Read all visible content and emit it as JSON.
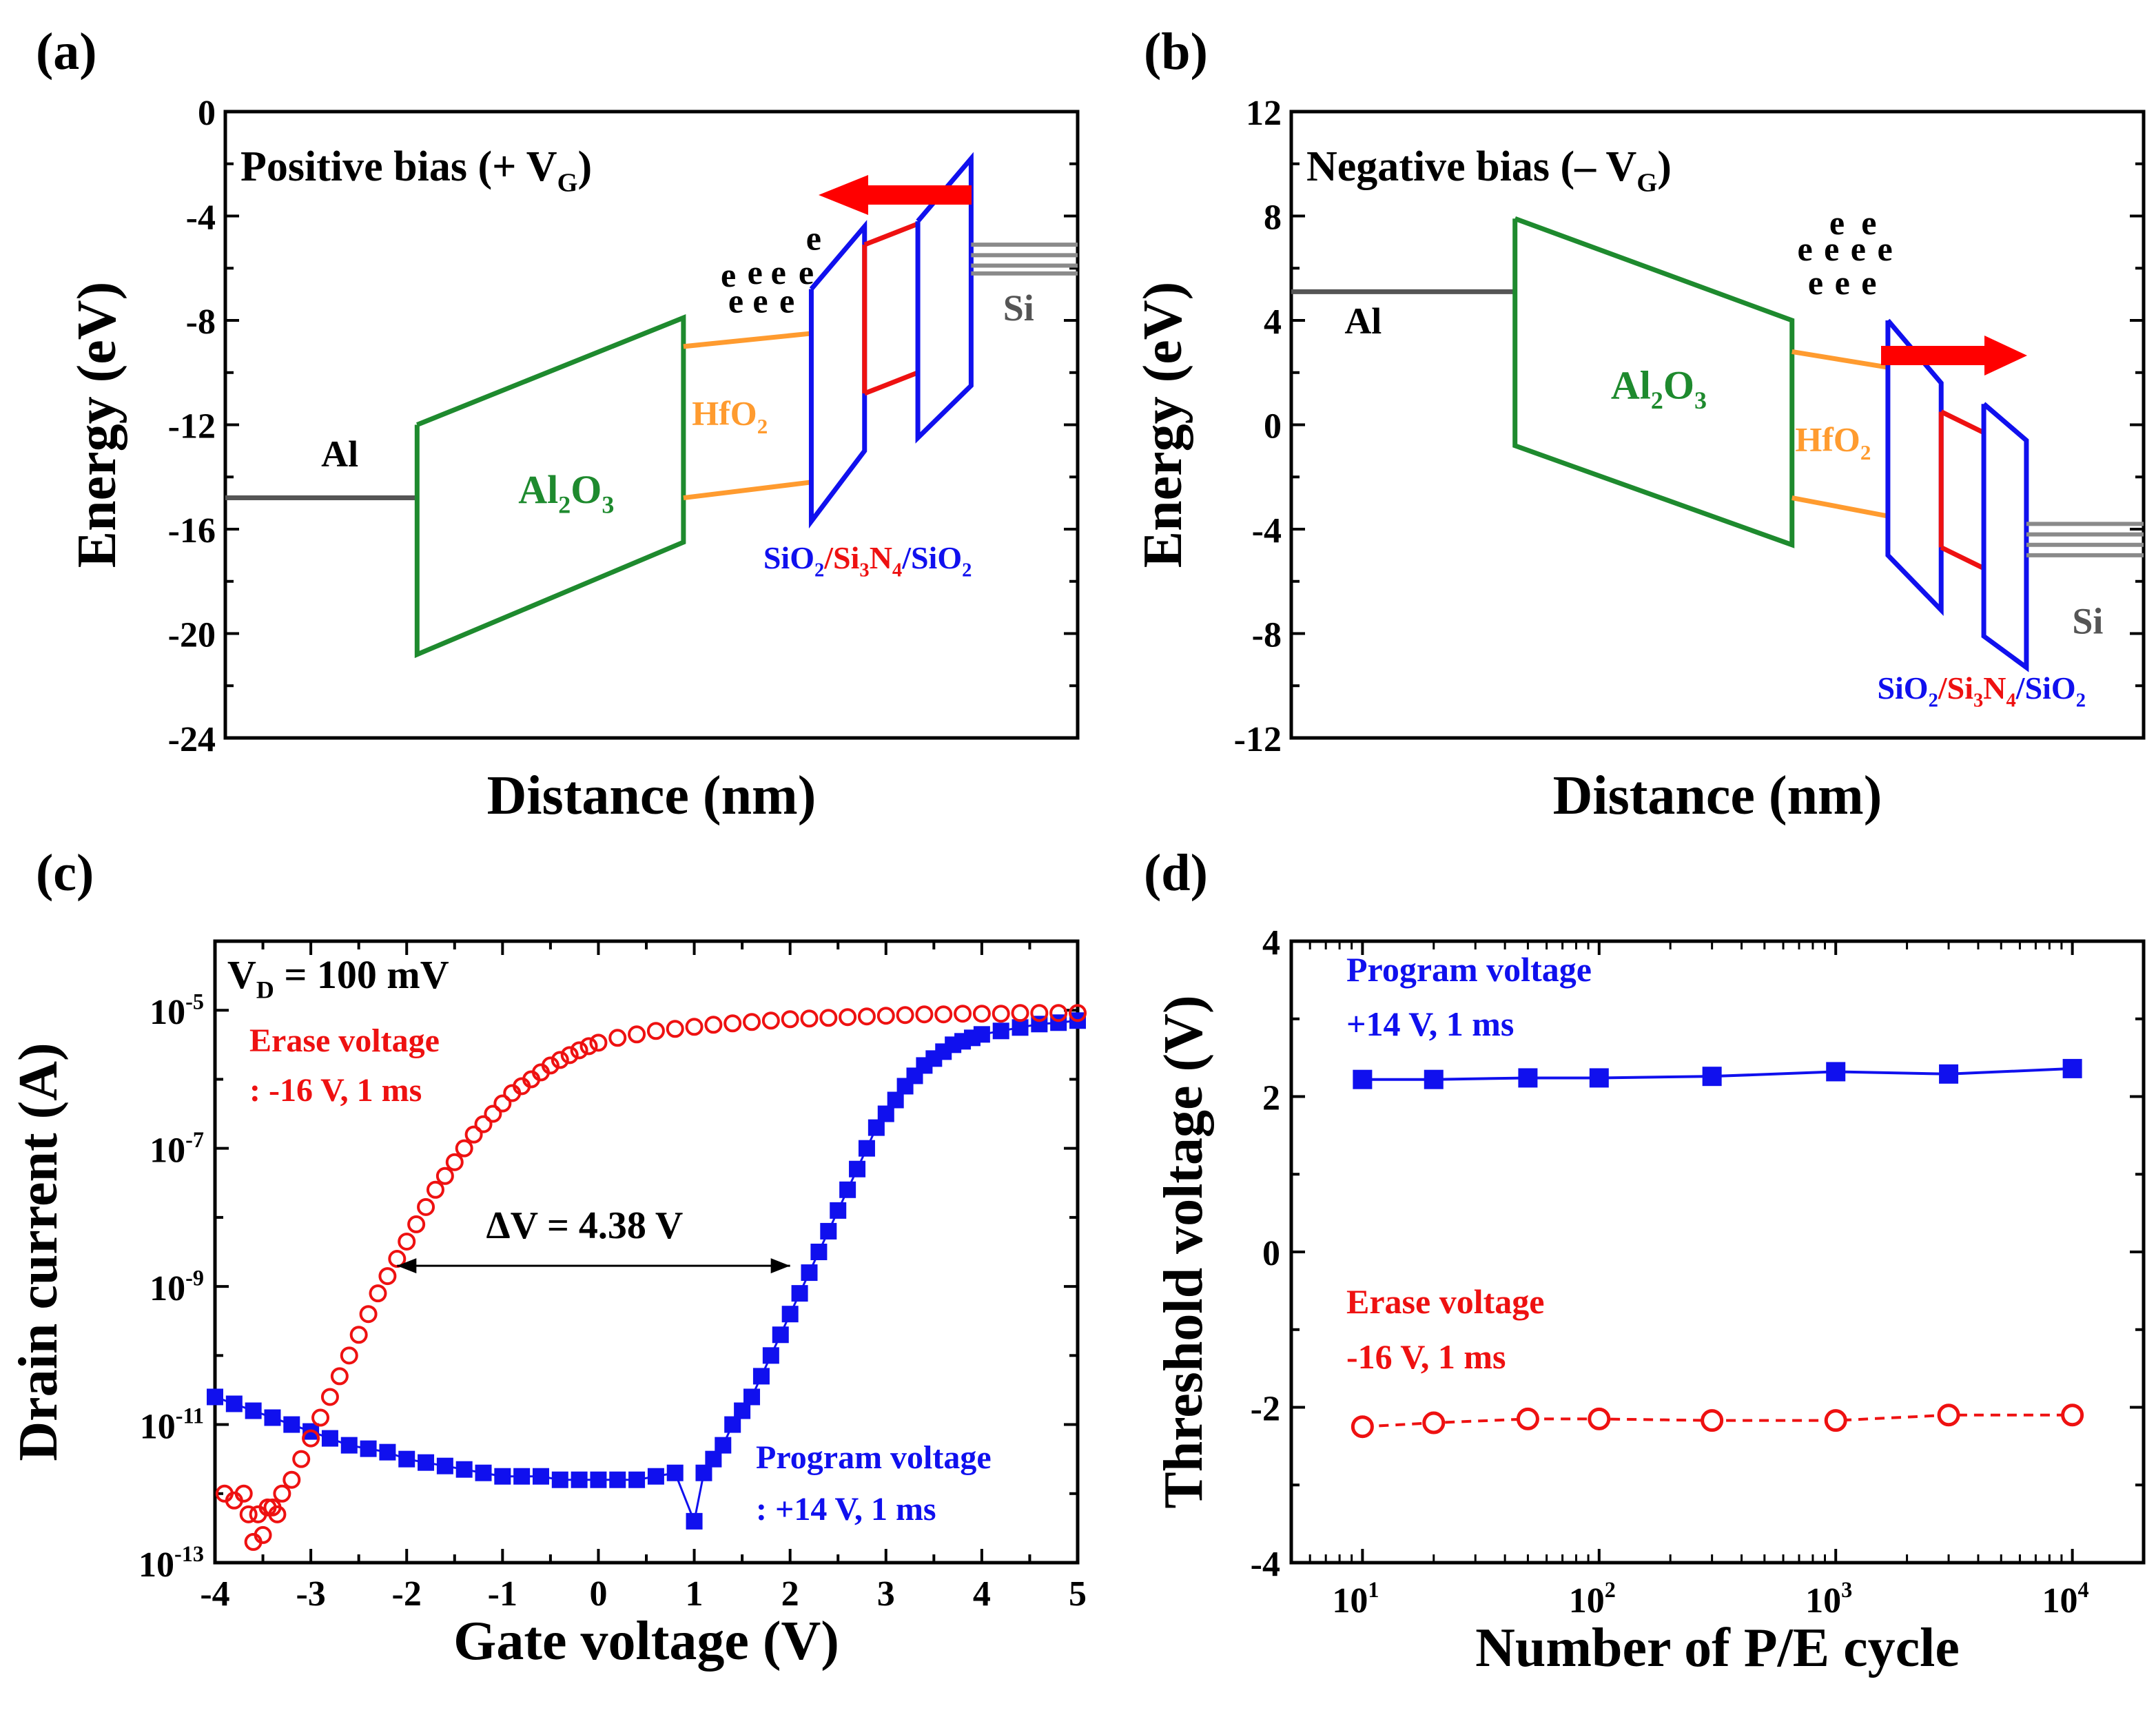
{
  "colors": {
    "al": "#555555",
    "al2o3": "#1e8a2e",
    "hfo2": "#ff9b2f",
    "sio2": "#1010ee",
    "si3n4": "#ee1111",
    "si": "#8a8a8a",
    "arrow": "#ff0000",
    "program": "#1010ee",
    "erase": "#ee1111"
  },
  "panels": [
    {
      "letter": "(a)",
      "title_main": "Positive bias (+ V",
      "title_sub": "G",
      "title_end": ")",
      "xlabel": "Distance (nm)",
      "ylabel": "Energy (eV)",
      "ticks": [
        "0",
        "-4",
        "-8",
        "-12",
        "-16",
        "-20",
        "-24"
      ],
      "ylim": [
        -24,
        0
      ]
    },
    {
      "letter": "(b)",
      "title_main": "Negative bias (– V",
      "title_sub": "G",
      "title_end": ")",
      "xlabel": "Distance (nm)",
      "ylabel": "Energy (eV)",
      "ticks": [
        "12",
        "8",
        "4",
        "0",
        "-4",
        "-8",
        "-12"
      ],
      "ylim": [
        -12,
        12
      ]
    },
    {
      "letter": "(c)",
      "xlabel": "Gate voltage (V)",
      "ylabel": "Drain current (A)",
      "vd_main": "V",
      "vd_sub": "D",
      "vd_end": " = 100 mV",
      "delta": "ΔV = 4.38 V",
      "erase_l1": "Erase voltage",
      "erase_l2": ": -16 V, 1 ms",
      "program_l1": "Program voltage",
      "program_l2": ": +14 V, 1 ms",
      "xticks": [
        "-4",
        "-3",
        "-2",
        "-1",
        "0",
        "1",
        "2",
        "3",
        "4",
        "5"
      ],
      "yticks": [
        "10",
        "10",
        "10",
        "10",
        "10"
      ],
      "yexp": [
        "-5",
        "-7",
        "-9",
        "-11",
        "-13"
      ]
    },
    {
      "letter": "(d)",
      "xlabel": "Number of P/E cycle",
      "ylabel": "Threshold voltage (V)",
      "program_l1": "Program voltage",
      "program_l2": "+14 V, 1 ms",
      "erase_l1": "Erase voltage",
      "erase_l2": "-16 V, 1 ms",
      "yticks": [
        "4",
        "2",
        "0",
        "-2",
        "-4"
      ],
      "xtick_base": [
        "10",
        "10",
        "10",
        "10"
      ],
      "xtick_exp": [
        "1",
        "2",
        "3",
        "4"
      ]
    }
  ],
  "band_labels": {
    "al": "Al",
    "al2o3_a": "Al",
    "al2o3_b": "2",
    "al2o3_c": "O",
    "al2o3_d": "3",
    "hfo2_a": "HfO",
    "hfo2_b": "2",
    "si": "Si",
    "e": "e",
    "stack_1": "SiO",
    "stack_2": "2",
    "stack_3": "/",
    "stack_4": "Si",
    "stack_5": "3",
    "stack_6": "N",
    "stack_7": "4",
    "stack_8": "/",
    "stack_9": "SiO",
    "stack_10": "2"
  },
  "chart_data": [
    {
      "type": "line",
      "panel": "a",
      "ylim": [
        -24,
        0
      ],
      "segments": {
        "al_level": [
          [
            0,
            -14.8
          ],
          [
            1.8,
            -14.8
          ]
        ],
        "al2o3": {
          "x": [
            1.8,
            4.3
          ],
          "top": [
            -12.0,
            -7.9
          ],
          "bottom": [
            -20.8,
            -16.5
          ]
        },
        "hfo2": {
          "x": [
            4.3,
            5.5
          ],
          "top": [
            -9.0,
            -8.5
          ],
          "bottom": [
            -14.8,
            -14.2
          ]
        },
        "sio2_1": {
          "x": [
            5.5,
            6.0
          ],
          "top": [
            -6.8,
            -4.4
          ],
          "bottom": [
            -15.7,
            -13.0
          ]
        },
        "si3n4": {
          "x": [
            6.0,
            6.5
          ],
          "top": [
            -5.1,
            -4.3
          ],
          "bottom": [
            -10.8,
            -10.0
          ]
        },
        "sio2_2": {
          "x": [
            6.5,
            7.0
          ],
          "top": [
            -4.2,
            -1.8
          ],
          "bottom": [
            -12.5,
            -10.5
          ]
        },
        "si_levels": [
          -5.1,
          -5.5,
          -5.9,
          -6.2
        ]
      }
    },
    {
      "type": "line",
      "panel": "b",
      "ylim": [
        -12,
        12
      ],
      "segments": {
        "al_level": [
          [
            0,
            5.1
          ],
          [
            2.1,
            5.1
          ]
        ],
        "al2o3": {
          "x": [
            2.1,
            4.7
          ],
          "top": [
            7.9,
            4.0
          ],
          "bottom": [
            -0.8,
            -4.6
          ]
        },
        "hfo2": {
          "x": [
            4.7,
            5.6
          ],
          "top": [
            2.8,
            2.2
          ],
          "bottom": [
            -2.8,
            -3.5
          ]
        },
        "sio2_1": {
          "x": [
            5.6,
            6.1
          ],
          "top": [
            4.0,
            1.6
          ],
          "bottom": [
            -5.0,
            -7.1
          ]
        },
        "si3n4": {
          "x": [
            6.1,
            6.5
          ],
          "top": [
            0.5,
            -0.3
          ],
          "bottom": [
            -4.7,
            -5.5
          ]
        },
        "sio2_2": {
          "x": [
            6.5,
            6.9
          ],
          "top": [
            0.8,
            -0.6
          ],
          "bottom": [
            -8.1,
            -9.3
          ]
        },
        "si_levels": [
          -3.8,
          -4.2,
          -4.6,
          -5.0
        ]
      }
    },
    {
      "type": "scatter",
      "panel": "c",
      "xlim": [
        -4,
        5
      ],
      "ylim_log10": [
        -13,
        -4
      ],
      "series": [
        {
          "name": "Erase voltage",
          "marker": "open-circle",
          "x": [
            -3.9,
            -3.8,
            -3.7,
            -3.65,
            -3.6,
            -3.55,
            -3.5,
            -3.45,
            -3.4,
            -3.35,
            -3.3,
            -3.2,
            -3.1,
            -3.0,
            -2.9,
            -2.8,
            -2.7,
            -2.6,
            -2.5,
            -2.4,
            -2.3,
            -2.2,
            -2.1,
            -2.0,
            -1.9,
            -1.8,
            -1.7,
            -1.6,
            -1.5,
            -1.4,
            -1.3,
            -1.2,
            -1.1,
            -1.0,
            -0.9,
            -0.8,
            -0.7,
            -0.6,
            -0.5,
            -0.4,
            -0.3,
            -0.2,
            -0.1,
            0.0,
            0.2,
            0.4,
            0.6,
            0.8,
            1.0,
            1.2,
            1.4,
            1.6,
            1.8,
            2.0,
            2.2,
            2.4,
            2.6,
            2.8,
            3.0,
            3.2,
            3.4,
            3.6,
            3.8,
            4.0,
            4.2,
            4.4,
            4.6,
            4.8,
            5.0
          ],
          "log10_y": [
            -12.0,
            -12.1,
            -12.0,
            -12.3,
            -12.7,
            -12.3,
            -12.6,
            -12.2,
            -12.2,
            -12.3,
            -12.0,
            -11.8,
            -11.5,
            -11.2,
            -10.9,
            -10.6,
            -10.3,
            -10.0,
            -9.7,
            -9.4,
            -9.1,
            -8.85,
            -8.6,
            -8.35,
            -8.1,
            -7.85,
            -7.6,
            -7.4,
            -7.2,
            -7.0,
            -6.8,
            -6.65,
            -6.5,
            -6.35,
            -6.2,
            -6.1,
            -6.0,
            -5.9,
            -5.8,
            -5.72,
            -5.65,
            -5.58,
            -5.52,
            -5.47,
            -5.4,
            -5.35,
            -5.3,
            -5.27,
            -5.24,
            -5.21,
            -5.19,
            -5.17,
            -5.15,
            -5.13,
            -5.12,
            -5.11,
            -5.1,
            -5.09,
            -5.08,
            -5.07,
            -5.06,
            -5.06,
            -5.05,
            -5.05,
            -5.05,
            -5.04,
            -5.04,
            -5.04,
            -5.04
          ]
        },
        {
          "name": "Program voltage",
          "marker": "filled-square",
          "x": [
            -4.0,
            -3.8,
            -3.6,
            -3.4,
            -3.2,
            -3.0,
            -2.8,
            -2.6,
            -2.4,
            -2.2,
            -2.0,
            -1.8,
            -1.6,
            -1.4,
            -1.2,
            -1.0,
            -0.8,
            -0.6,
            -0.4,
            -0.2,
            0.0,
            0.2,
            0.4,
            0.6,
            0.8,
            1.0,
            1.1,
            1.2,
            1.3,
            1.4,
            1.5,
            1.6,
            1.7,
            1.8,
            1.9,
            2.0,
            2.1,
            2.2,
            2.3,
            2.4,
            2.5,
            2.6,
            2.7,
            2.8,
            2.9,
            3.0,
            3.1,
            3.2,
            3.3,
            3.4,
            3.5,
            3.6,
            3.7,
            3.8,
            3.9,
            4.0,
            4.2,
            4.4,
            4.6,
            4.8,
            5.0
          ],
          "log10_y": [
            -10.6,
            -10.7,
            -10.8,
            -10.9,
            -11.0,
            -11.1,
            -11.2,
            -11.3,
            -11.35,
            -11.4,
            -11.5,
            -11.55,
            -11.6,
            -11.65,
            -11.7,
            -11.75,
            -11.75,
            -11.75,
            -11.8,
            -11.8,
            -11.8,
            -11.8,
            -11.8,
            -11.75,
            -11.7,
            -12.4,
            -11.7,
            -11.5,
            -11.3,
            -11.0,
            -10.8,
            -10.6,
            -10.3,
            -10.0,
            -9.7,
            -9.4,
            -9.1,
            -8.8,
            -8.5,
            -8.2,
            -7.9,
            -7.6,
            -7.3,
            -7.0,
            -6.7,
            -6.5,
            -6.3,
            -6.1,
            -5.95,
            -5.8,
            -5.7,
            -5.6,
            -5.5,
            -5.45,
            -5.4,
            -5.35,
            -5.3,
            -5.25,
            -5.2,
            -5.18,
            -5.15
          ]
        }
      ],
      "annotation": {
        "label": "ΔV = 4.38 V",
        "from_x": -2.1,
        "to_x": 2.0,
        "at_log10_y": -9.0
      }
    },
    {
      "type": "line",
      "panel": "d",
      "xscale": "log",
      "xlim": [
        5,
        20000
      ],
      "ylim": [
        -4,
        4
      ],
      "x": [
        10,
        20,
        50,
        100,
        300,
        1000,
        3000,
        10000
      ],
      "series": [
        {
          "name": "Program voltage",
          "marker": "filled-square",
          "linestyle": "solid",
          "values": [
            2.22,
            2.22,
            2.24,
            2.24,
            2.26,
            2.32,
            2.29,
            2.36
          ]
        },
        {
          "name": "Erase voltage",
          "marker": "open-circle",
          "linestyle": "dashed",
          "values": [
            -2.25,
            -2.2,
            -2.15,
            -2.15,
            -2.17,
            -2.17,
            -2.1,
            -2.1
          ]
        }
      ]
    }
  ]
}
